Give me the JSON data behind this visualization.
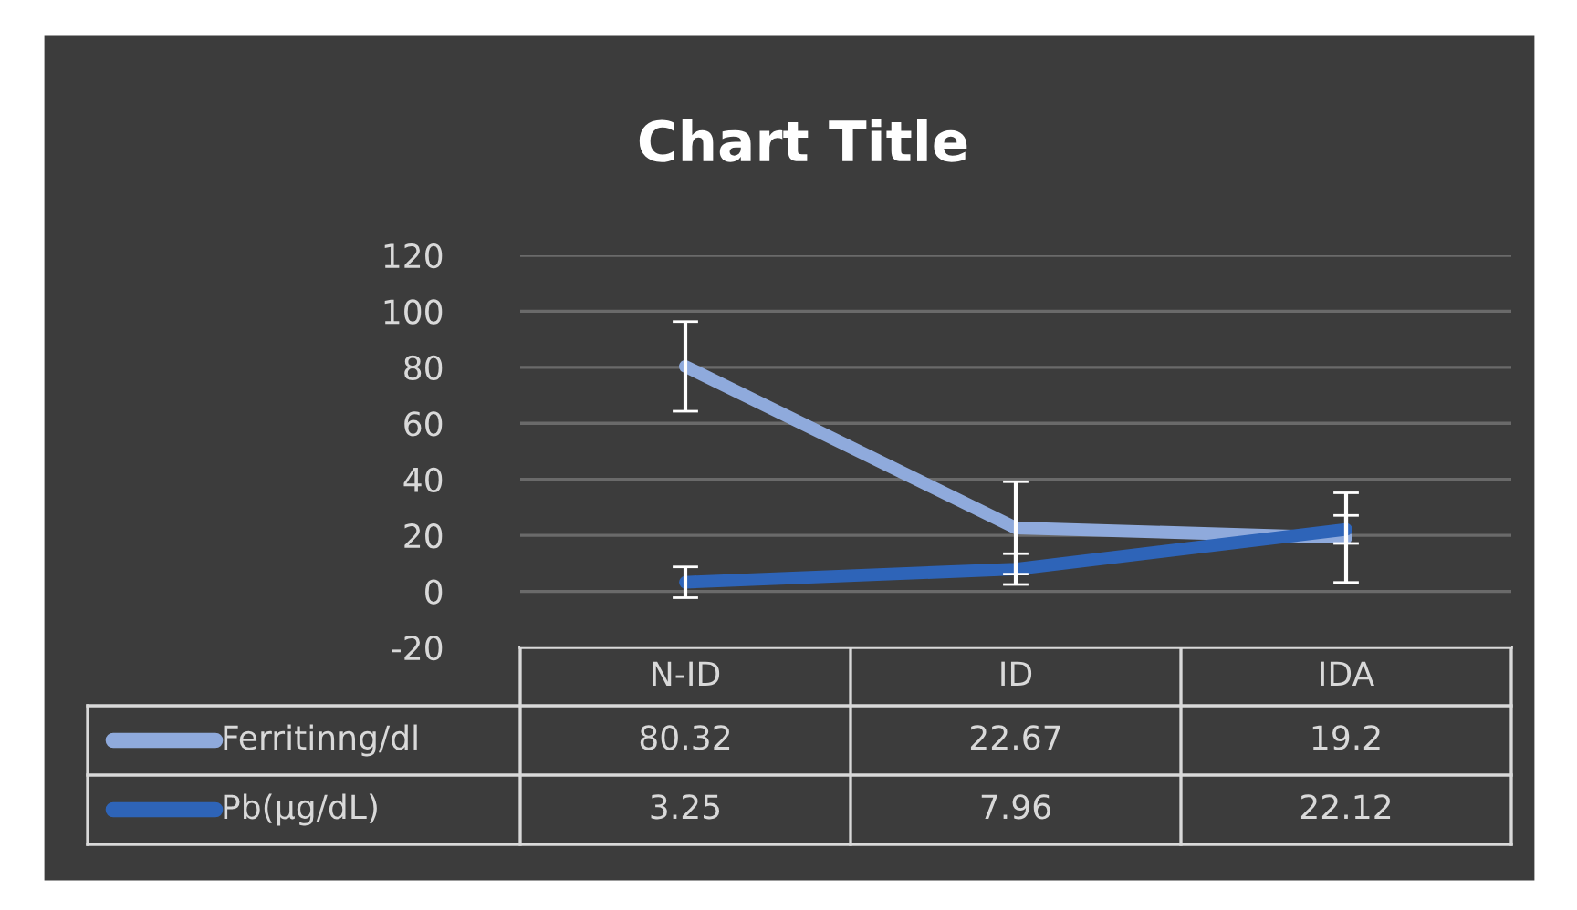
{
  "chart_data": {
    "type": "line",
    "title": "Chart Title",
    "categories": [
      "N-ID",
      "ID",
      "IDA"
    ],
    "series": [
      {
        "name": "Ferritinng/dl",
        "color": "#8faadc",
        "values": [
          80.32,
          22.67,
          19.2
        ],
        "errors": [
          16,
          16.5,
          16
        ]
      },
      {
        "name": "Pb(µg/dL)",
        "color": "#2e64b8",
        "values": [
          3.25,
          7.96,
          22.12
        ],
        "errors": [
          5.5,
          5.5,
          5
        ]
      }
    ],
    "ylim": [
      -20,
      120
    ],
    "yticks": [
      -20,
      0,
      20,
      40,
      60,
      80,
      100,
      120
    ],
    "grid": "y",
    "legend": "bottom",
    "marker": "none",
    "line_style": "solid",
    "data_labels": true
  }
}
